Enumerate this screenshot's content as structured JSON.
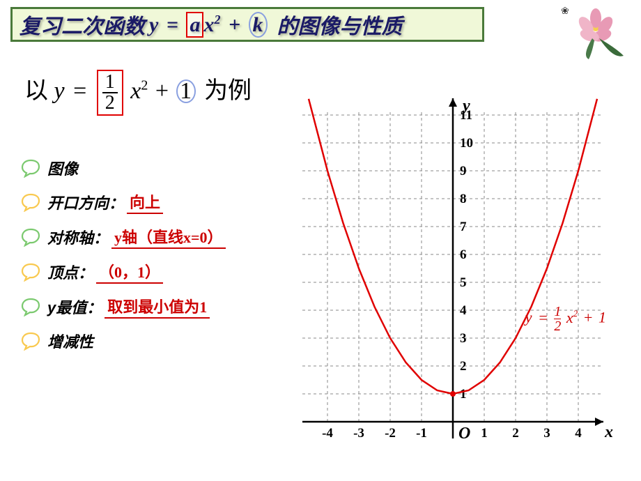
{
  "title": {
    "prefix": "复习二次函数",
    "eq_lhs": "y",
    "eq_eq": "=",
    "eq_a": "a",
    "eq_x": "x",
    "eq_sup": "2",
    "eq_plus": "+",
    "eq_k": "k",
    "suffix": "的图像与性质",
    "border_color": "#4a7a3a",
    "bg_color": "#f0f8d8",
    "text_color": "#1a1a66"
  },
  "example": {
    "prefix": "以",
    "lhs": "y",
    "eq": "=",
    "frac_num": "1",
    "frac_den": "2",
    "x": "x",
    "sup": "2",
    "plus": "+",
    "one": "1",
    "suffix": "为例"
  },
  "props": [
    {
      "label": "图像",
      "value": "",
      "bubble_color": "#7bc96f"
    },
    {
      "label": "开口方向：",
      "value": "向上",
      "bubble_color": "#f9c94f"
    },
    {
      "label": "对称轴：",
      "value": "y轴（直线x=0）",
      "bubble_color": "#7bc96f"
    },
    {
      "label": "顶点：",
      "value": "（0，1）",
      "bubble_color": "#f9c94f"
    },
    {
      "label": "y最值：",
      "value": "取到最小值为1",
      "bubble_color": "#7bc96f"
    },
    {
      "label": "增减性",
      "value": "",
      "bubble_color": "#f9c94f"
    }
  ],
  "chart": {
    "type": "line",
    "x_label": "x",
    "y_label": "y",
    "origin_label": "O",
    "xlim": [
      -4.8,
      4.8
    ],
    "ylim": [
      -0.8,
      11.6
    ],
    "x_ticks": [
      -4,
      -3,
      -2,
      -1,
      1,
      2,
      3,
      4
    ],
    "y_ticks": [
      1,
      2,
      3,
      4,
      5,
      6,
      7,
      8,
      9,
      10,
      11
    ],
    "grid_color": "#888888",
    "axis_color": "#000000",
    "curve_color": "#e00000",
    "curve_width": 2.5,
    "vertex": [
      0,
      1
    ],
    "equation_label": {
      "lhs": "y",
      "eq": "=",
      "frac_num": "1",
      "frac_den": "2",
      "x": "x",
      "sup": "2",
      "plus": "+",
      "c": "1",
      "color": "#cc0000"
    },
    "curve_points_x": [
      -4.6,
      -4,
      -3.5,
      -3,
      -2.5,
      -2,
      -1.5,
      -1,
      -0.5,
      0,
      0.5,
      1,
      1.5,
      2,
      2.5,
      3,
      3.5,
      4,
      4.6
    ]
  }
}
